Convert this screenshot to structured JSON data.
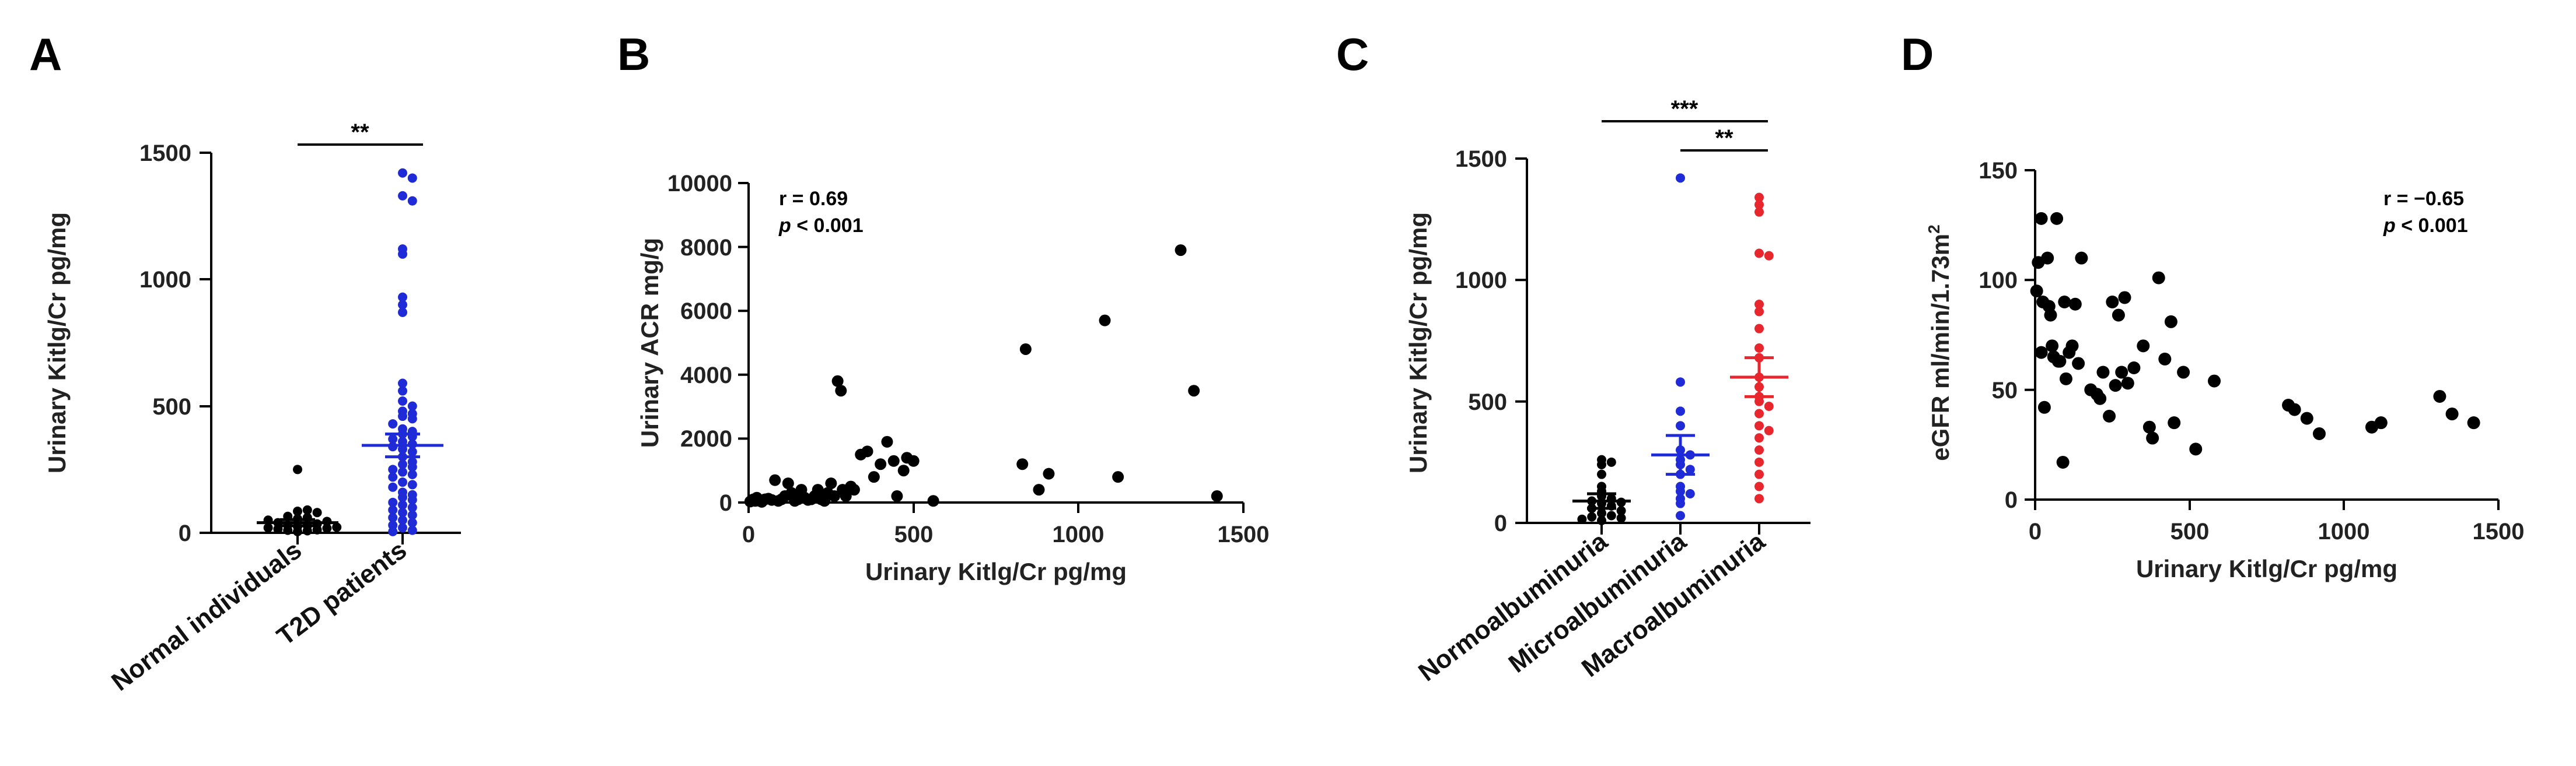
{
  "chart_data": [
    {
      "panel": "A",
      "type": "scatter",
      "subtype": "dot-plot-mean-sem",
      "categories": [
        "Normal individuals",
        "T2D patients"
      ],
      "ylabel": "Urinary Kitlg/Cr pg/mg",
      "ylim": [
        0,
        1500
      ],
      "yticks": [
        0,
        500,
        1000,
        1500
      ],
      "significance": [
        {
          "from": 0,
          "to": 1,
          "label": "**"
        }
      ],
      "groups": [
        {
          "name": "Normal individuals",
          "color": "#000000",
          "mean": 40,
          "sem": 12,
          "values": [
            5,
            8,
            10,
            12,
            15,
            18,
            20,
            22,
            25,
            28,
            30,
            35,
            40,
            45,
            50,
            55,
            60,
            65,
            80,
            85,
            90,
            250
          ]
        },
        {
          "name": "T2D patients",
          "color": "#1f2bd6",
          "mean": 345,
          "sem": 45,
          "values": [
            1420,
            1400,
            1330,
            1310,
            1120,
            1100,
            930,
            900,
            870,
            590,
            560,
            520,
            500,
            480,
            470,
            460,
            450,
            430,
            410,
            400,
            390,
            380,
            370,
            360,
            350,
            340,
            330,
            320,
            300,
            280,
            270,
            260,
            250,
            240,
            230,
            220,
            200,
            190,
            180,
            160,
            150,
            140,
            130,
            120,
            110,
            100,
            90,
            80,
            70,
            60,
            50,
            40,
            30,
            20,
            10,
            5
          ]
        }
      ]
    },
    {
      "panel": "B",
      "type": "scatter",
      "xlabel": "Urinary Kitlg/Cr pg/mg",
      "ylabel": "Urinary ACR mg/g",
      "xlim": [
        0,
        1500
      ],
      "ylim": [
        0,
        10000
      ],
      "xticks": [
        0,
        500,
        1000,
        1500
      ],
      "yticks": [
        0,
        2000,
        4000,
        6000,
        8000,
        10000
      ],
      "stat_r": "r = 0.69",
      "stat_p_symbol": "p",
      "stat_p_rest": " < 0.001",
      "x": [
        5,
        10,
        15,
        20,
        25,
        30,
        40,
        50,
        60,
        70,
        80,
        90,
        100,
        110,
        120,
        130,
        140,
        150,
        160,
        170,
        180,
        190,
        200,
        210,
        220,
        230,
        240,
        250,
        260,
        270,
        280,
        285,
        295,
        310,
        320,
        340,
        360,
        380,
        400,
        420,
        440,
        450,
        470,
        480,
        500,
        560,
        830,
        840,
        880,
        910,
        1080,
        1120,
        1310,
        1350,
        1420
      ],
      "y": [
        30,
        80,
        100,
        50,
        150,
        60,
        20,
        100,
        120,
        80,
        700,
        50,
        100,
        200,
        600,
        300,
        50,
        100,
        400,
        150,
        80,
        100,
        200,
        400,
        100,
        50,
        300,
        600,
        200,
        3800,
        3500,
        400,
        200,
        500,
        400,
        1500,
        1600,
        800,
        1200,
        1900,
        1300,
        200,
        1000,
        1400,
        1300,
        50,
        1200,
        4800,
        400,
        900,
        5700,
        800,
        7900,
        3500,
        200
      ]
    },
    {
      "panel": "C",
      "type": "scatter",
      "subtype": "dot-plot-mean-sem",
      "categories": [
        "Normoalbuminuria",
        "Microalbuminuria",
        "Macroalbuminuria"
      ],
      "ylabel": "Urinary Kitlg/Cr pg/mg",
      "ylim": [
        0,
        1500
      ],
      "yticks": [
        0,
        500,
        1000,
        1500
      ],
      "significance": [
        {
          "from": 0,
          "to": 2,
          "label": "***"
        },
        {
          "from": 1,
          "to": 2,
          "label": "**"
        }
      ],
      "groups": [
        {
          "name": "Normoalbuminuria",
          "color": "#000000",
          "mean": 90,
          "sem": 30,
          "values": [
            260,
            250,
            240,
            200,
            150,
            130,
            110,
            100,
            90,
            85,
            80,
            70,
            60,
            50,
            40,
            30,
            25,
            20,
            15,
            10
          ]
        },
        {
          "name": "Microalbuminuria",
          "color": "#1f2bd6",
          "mean": 280,
          "sem": 80,
          "values": [
            1420,
            580,
            460,
            400,
            300,
            280,
            260,
            240,
            220,
            200,
            150,
            130,
            120,
            100,
            80,
            30
          ]
        },
        {
          "name": "Macroalbuminuria",
          "color": "#e8262d",
          "mean": 600,
          "sem": 80,
          "values": [
            1340,
            1310,
            1280,
            1110,
            1100,
            900,
            870,
            800,
            720,
            680,
            600,
            560,
            520,
            500,
            480,
            450,
            400,
            380,
            350,
            300,
            250,
            200,
            150,
            100
          ]
        }
      ]
    },
    {
      "panel": "D",
      "type": "scatter",
      "xlabel": "Urinary Kitlg/Cr pg/mg",
      "ylabel_main": "eGFR ml/min/1.73m",
      "ylabel_sup": "2",
      "xlim": [
        0,
        1500
      ],
      "ylim": [
        0,
        150
      ],
      "xticks": [
        0,
        500,
        1000,
        1500
      ],
      "yticks": [
        0,
        50,
        100,
        150
      ],
      "stat_r": "r = −0.65",
      "stat_p_symbol": "p",
      "stat_p_rest": " < 0.001",
      "x": [
        5,
        10,
        20,
        20,
        25,
        30,
        40,
        45,
        50,
        55,
        60,
        70,
        75,
        80,
        90,
        95,
        100,
        110,
        120,
        130,
        140,
        150,
        180,
        200,
        210,
        220,
        240,
        250,
        260,
        270,
        280,
        290,
        300,
        320,
        350,
        370,
        380,
        400,
        420,
        440,
        450,
        480,
        520,
        580,
        820,
        840,
        880,
        920,
        1090,
        1120,
        1310,
        1350,
        1420
      ],
      "y": [
        95,
        108,
        128,
        67,
        90,
        42,
        110,
        88,
        84,
        70,
        65,
        128,
        63,
        63,
        17,
        90,
        55,
        67,
        70,
        89,
        62,
        110,
        50,
        48,
        46,
        58,
        38,
        90,
        52,
        84,
        58,
        92,
        53,
        60,
        70,
        33,
        28,
        101,
        64,
        81,
        35,
        58,
        23,
        54,
        43,
        41,
        37,
        30,
        33,
        35,
        47,
        39,
        35
      ]
    }
  ]
}
